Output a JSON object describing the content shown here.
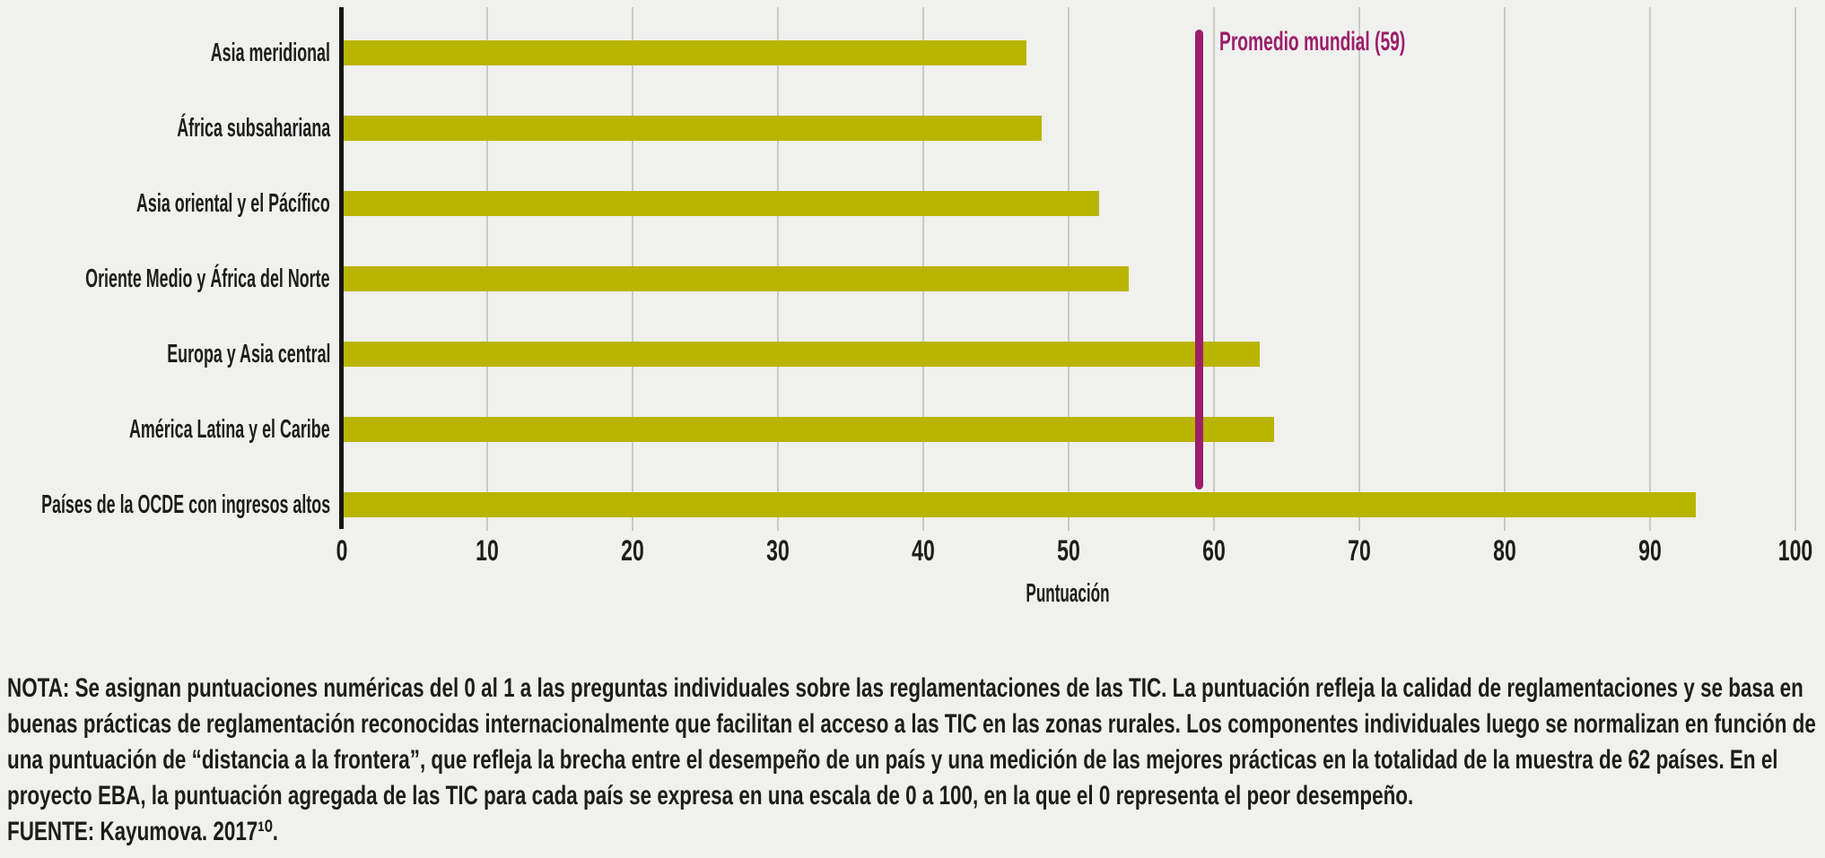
{
  "chart_data": {
    "type": "bar",
    "orientation": "horizontal",
    "categories": [
      "Asia meridional",
      "África subsahariana",
      "Asia oriental y el Pácífico",
      "Oriente Medio y África del Norte",
      "Europa y Asia central",
      "América Latina y el Caribe",
      "Países de la OCDE con ingresos altos"
    ],
    "values": [
      47,
      48,
      52,
      54,
      63,
      64,
      93
    ],
    "xlabel": "Puntuación",
    "xlim": [
      0,
      100
    ],
    "xticks": [
      0,
      10,
      20,
      30,
      40,
      50,
      60,
      70,
      80,
      90,
      100
    ],
    "grid": true,
    "legend_position": "none",
    "bar_color": "#b9b400",
    "reference_line": {
      "value": 59,
      "label": "Promedio mundial (59)",
      "color": "#9b1e6b"
    }
  },
  "note": {
    "lines": [
      "NOTA: Se asignan puntuaciones numéricas del 0 al 1 a las preguntas individuales sobre las reglamentaciones de las TIC. La puntuación refleja la calidad de reglamentaciones y se basa en",
      "buenas prácticas de reglamentación reconocidas internacionalmente que facilitan el acceso a las TIC en las zonas rurales. Los componentes individuales luego se normalizan en función de",
      "una puntuación de “distancia a la frontera”, que refleja la brecha entre el desempeño de un país y una medición de las mejores prácticas en la totalidad de la muestra de 62 países. En el",
      "proyecto EBA, la puntuación agregada de las TIC para cada país se expresa en una escala de 0 a 100, en la que el 0 representa el peor desempeño."
    ],
    "source": "FUENTE: Kayumova. 2017¹⁰."
  },
  "colors": {
    "background": "#f0f0ee",
    "bar": "#b9b400",
    "reference": "#9b1e6b",
    "axis": "#161614",
    "grid": "#c9c9c6",
    "text": "#1d1d1b"
  }
}
